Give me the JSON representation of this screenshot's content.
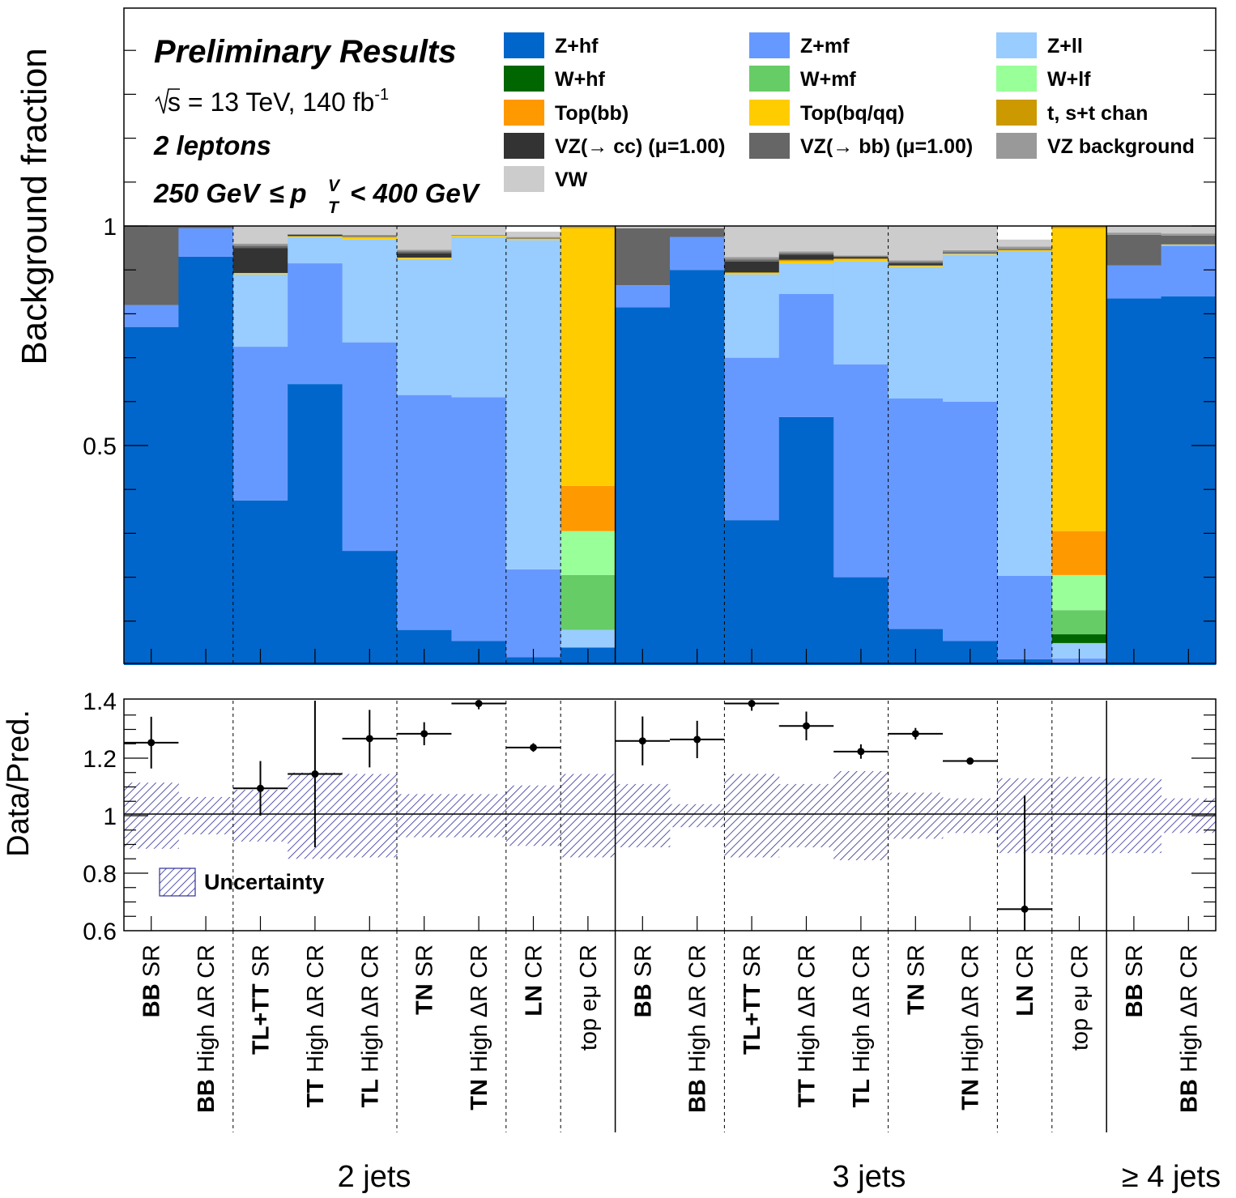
{
  "annotations": {
    "title": "Preliminary Results",
    "energy_pre": "s",
    "energy_rest": " = 13 TeV, 140 fb",
    "energy_sup": "-1",
    "channel": "2 leptons",
    "ptv_low": "250 GeV",
    "ptv_le": "≤",
    "ptv_p": "p",
    "ptv_sup": "V",
    "ptv_sub": "T",
    "ptv_high": "< 400 GeV"
  },
  "colors": {
    "Zhf": "#0066cc",
    "Zmf": "#6699ff",
    "Zll": "#99ccff",
    "Whf": "#006600",
    "Wmf": "#66cc66",
    "Wlf": "#99ff99",
    "Topbb": "#ff9900",
    "Topbq": "#ffcc00",
    "stop": "#cc9900",
    "VZcc": "#333333",
    "VZbb": "#666666",
    "VZbkg": "#999999",
    "VW": "#cccccc",
    "unc": "#2e2e99"
  },
  "chart_data": [
    {
      "type": "stacked-bar",
      "ylabel": "Background fraction",
      "ylim": [
        0,
        1.5
      ],
      "yticks": [
        0.5,
        1
      ],
      "ytick_labels": [
        "0.5",
        "1"
      ],
      "components": [
        {
          "key": "Zhf",
          "name": "Z+hf"
        },
        {
          "key": "Zmf",
          "name": "Z+mf"
        },
        {
          "key": "Zll",
          "name": "Z+ll"
        },
        {
          "key": "Whf",
          "name": "W+hf"
        },
        {
          "key": "Wmf",
          "name": "W+mf"
        },
        {
          "key": "Wlf",
          "name": "W+lf"
        },
        {
          "key": "Topbb",
          "name": "Top(bb)"
        },
        {
          "key": "Topbq",
          "name": "Top(bq/qq)"
        },
        {
          "key": "stop",
          "name": "t, s+t chan"
        },
        {
          "key": "VZcc",
          "name": "VZ(→ cc) (μ=1.00)"
        },
        {
          "key": "VZbb",
          "name": "VZ(→ bb) (μ=1.00)"
        },
        {
          "key": "VZbkg",
          "name": "VZ background"
        },
        {
          "key": "VW",
          "name": "VW"
        }
      ],
      "bins": [
        {
          "Zhf": 0.77,
          "Zmf": 0.05,
          "Zll": 0.0,
          "Whf": 0,
          "Wmf": 0,
          "Wlf": 0,
          "Topbb": 0,
          "Topbq": 0,
          "stop": 0,
          "VZcc": 0,
          "VZbb": 0.18,
          "VZbkg": 0,
          "VW": 0
        },
        {
          "Zhf": 0.93,
          "Zmf": 0.065,
          "Zll": 0.0,
          "Whf": 0,
          "Wmf": 0,
          "Wlf": 0,
          "Topbb": 0,
          "Topbq": 0,
          "stop": 0,
          "VZcc": 0,
          "VZbb": 0.005,
          "VZbkg": 0,
          "VW": 0
        },
        {
          "Zhf": 0.375,
          "Zmf": 0.35,
          "Zll": 0.165,
          "Whf": 0,
          "Wmf": 0,
          "Wlf": 0,
          "Topbb": 0,
          "Topbq": 0.003,
          "stop": 0,
          "VZcc": 0.057,
          "VZbb": 0.005,
          "VZbkg": 0.005,
          "VW": 0.04
        },
        {
          "Zhf": 0.64,
          "Zmf": 0.275,
          "Zll": 0.06,
          "Whf": 0,
          "Wmf": 0,
          "Wlf": 0,
          "Topbb": 0,
          "Topbq": 0.002,
          "stop": 0,
          "VZcc": 0.003,
          "VZbb": 0.001,
          "VZbkg": 0.001,
          "VW": 0.018
        },
        {
          "Zhf": 0.26,
          "Zmf": 0.475,
          "Zll": 0.235,
          "Whf": 0,
          "Wmf": 0,
          "Wlf": 0,
          "Topbb": 0,
          "Topbq": 0.005,
          "stop": 0,
          "VZcc": 0,
          "VZbb": 0.002,
          "VZbkg": 0.003,
          "VW": 0.02
        },
        {
          "Zhf": 0.08,
          "Zmf": 0.535,
          "Zll": 0.31,
          "Whf": 0,
          "Wmf": 0,
          "Wlf": 0,
          "Topbb": 0,
          "Topbq": 0.003,
          "stop": 0,
          "VZcc": 0.01,
          "VZbb": 0.004,
          "VZbkg": 0.004,
          "VW": 0.054
        },
        {
          "Zhf": 0.055,
          "Zmf": 0.555,
          "Zll": 0.365,
          "Whf": 0,
          "Wmf": 0,
          "Wlf": 0,
          "Topbb": 0,
          "Topbq": 0.003,
          "stop": 0,
          "VZcc": 0,
          "VZbb": 0.001,
          "VZbkg": 0.001,
          "VW": 0.02
        },
        {
          "Zhf": 0.018,
          "Zmf": 0.2,
          "Zll": 0.75,
          "Whf": 0,
          "Wmf": 0,
          "Wlf": 0,
          "Topbb": 0,
          "Topbq": 0.003,
          "stop": 0,
          "VZcc": 0,
          "VZbb": 0.002,
          "VZbkg": 0.002,
          "VW": 0.012
        },
        {
          "Zhf": 0.04,
          "Zmf": 0.0,
          "Zll": 0.04,
          "Whf": 0,
          "Wmf": 0.125,
          "Wlf": 0.1,
          "Topbb": 0.103,
          "Topbq": 0.587,
          "stop": 0.003,
          "VZcc": 0,
          "VZbb": 0,
          "VZbkg": 0,
          "VW": 0.002
        },
        {
          "Zhf": 0.815,
          "Zmf": 0.05,
          "Zll": 0,
          "Whf": 0,
          "Wmf": 0,
          "Wlf": 0,
          "Topbb": 0,
          "Topbq": 0,
          "stop": 0,
          "VZcc": 0,
          "VZbb": 0.13,
          "VZbkg": 0,
          "VW": 0.005
        },
        {
          "Zhf": 0.9,
          "Zmf": 0.075,
          "Zll": 0,
          "Whf": 0,
          "Wmf": 0,
          "Wlf": 0,
          "Topbb": 0,
          "Topbq": 0,
          "stop": 0,
          "VZcc": 0,
          "VZbb": 0.02,
          "VZbkg": 0,
          "VW": 0.005
        },
        {
          "Zhf": 0.33,
          "Zmf": 0.37,
          "Zll": 0.19,
          "Whf": 0,
          "Wmf": 0,
          "Wlf": 0,
          "Topbb": 0,
          "Topbq": 0.004,
          "stop": 0,
          "VZcc": 0.025,
          "VZbb": 0.005,
          "VZbkg": 0.005,
          "VW": 0.071
        },
        {
          "Zhf": 0.565,
          "Zmf": 0.28,
          "Zll": 0.07,
          "Whf": 0,
          "Wmf": 0,
          "Wlf": 0,
          "Topbb": 0,
          "Topbq": 0.005,
          "stop": 0.003,
          "VZcc": 0.012,
          "VZbb": 0.003,
          "VZbkg": 0.004,
          "VW": 0.058
        },
        {
          "Zhf": 0.2,
          "Zmf": 0.485,
          "Zll": 0.235,
          "Whf": 0,
          "Wmf": 0,
          "Wlf": 0,
          "Topbb": 0,
          "Topbq": 0.004,
          "stop": 0.002,
          "VZcc": 0.003,
          "VZbb": 0.002,
          "VZbkg": 0.002,
          "VW": 0.067
        },
        {
          "Zhf": 0.082,
          "Zmf": 0.525,
          "Zll": 0.3,
          "Whf": 0,
          "Wmf": 0,
          "Wlf": 0,
          "Topbb": 0,
          "Topbq": 0.003,
          "stop": 0,
          "VZcc": 0.005,
          "VZbb": 0.003,
          "VZbkg": 0.004,
          "VW": 0.078
        },
        {
          "Zhf": 0.055,
          "Zmf": 0.545,
          "Zll": 0.335,
          "Whf": 0,
          "Wmf": 0,
          "Wlf": 0,
          "Topbb": 0,
          "Topbq": 0.002,
          "stop": 0,
          "VZcc": 0,
          "VZbb": 0.003,
          "VZbkg": 0.005,
          "VW": 0.055
        },
        {
          "Zhf": 0.013,
          "Zmf": 0.19,
          "Zll": 0.74,
          "Whf": 0,
          "Wmf": 0,
          "Wlf": 0,
          "Topbb": 0,
          "Topbq": 0.002,
          "stop": 0,
          "VZcc": 0,
          "VZbb": 0.003,
          "VZbkg": 0.005,
          "VW": 0.016
        },
        {
          "Zhf": 0.005,
          "Zmf": 0.01,
          "Zll": 0.035,
          "Whf": 0.02,
          "Wmf": 0.055,
          "Wlf": 0.08,
          "Topbb": 0.1,
          "Topbq": 0.69,
          "stop": 0.005,
          "VZcc": 0,
          "VZbb": 0,
          "VZbkg": 0,
          "VW": 0
        },
        {
          "Zhf": 0.835,
          "Zmf": 0.075,
          "Zll": 0.0,
          "Whf": 0,
          "Wmf": 0,
          "Wlf": 0,
          "Topbb": 0,
          "Topbq": 0,
          "stop": 0,
          "VZcc": 0,
          "VZbb": 0.07,
          "VZbkg": 0.005,
          "VW": 0.015
        },
        {
          "Zhf": 0.84,
          "Zmf": 0.115,
          "Zll": 0.002,
          "Whf": 0,
          "Wmf": 0,
          "Wlf": 0,
          "Topbb": 0,
          "Topbq": 0.001,
          "stop": 0,
          "VZcc": 0,
          "VZbb": 0.02,
          "VZbkg": 0.005,
          "VW": 0.017
        }
      ]
    },
    {
      "type": "ratio",
      "ylabel": "Data/Pred.",
      "ylim": [
        0.6,
        1.4
      ],
      "yticks": [
        0.6,
        0.8,
        1,
        1.2,
        1.4
      ],
      "ytick_labels": [
        "0.6",
        "0.8",
        "1",
        "1.2",
        "1.4"
      ],
      "legend": "Uncertainty",
      "points": [
        {
          "y": 1.254,
          "err": 0.09
        },
        {
          "y": null,
          "err": 0
        },
        {
          "y": 1.095,
          "err": 0.095
        },
        {
          "y": 1.145,
          "err": 0.255
        },
        {
          "y": 1.268,
          "err": 0.1
        },
        {
          "y": 1.285,
          "err": 0.04
        },
        {
          "y": 1.39,
          "err": 0.02
        },
        {
          "y": 1.237,
          "err": 0.015
        },
        {
          "y": null,
          "err": 0
        },
        {
          "y": 1.26,
          "err": 0.085
        },
        {
          "y": 1.265,
          "err": 0.065
        },
        {
          "y": 1.39,
          "err": 0.025
        },
        {
          "y": 1.312,
          "err": 0.05
        },
        {
          "y": 1.223,
          "err": 0.025
        },
        {
          "y": 1.285,
          "err": 0.02
        },
        {
          "y": 1.19,
          "err": 0.008
        },
        {
          "y": 0.675,
          "err": 0.395
        },
        {
          "y": null,
          "err": 0
        },
        {
          "y": null,
          "err": 0
        },
        {
          "y": null,
          "err": 0
        }
      ],
      "uncertainty": [
        0.115,
        0.065,
        0.09,
        0.15,
        0.145,
        0.075,
        0.075,
        0.105,
        0.145,
        0.11,
        0.04,
        0.145,
        0.11,
        0.155,
        0.08,
        0.06,
        0.13,
        0.135,
        0.13,
        0.06
      ]
    }
  ],
  "bin_labels": [
    {
      "b": "BB",
      "r": " SR"
    },
    {
      "b": "BB",
      "r": " High ΔR CR"
    },
    {
      "b": "TL+TT",
      "r": " SR"
    },
    {
      "b": "TT",
      "r": " High ΔR CR"
    },
    {
      "b": "TL",
      "r": " High ΔR CR"
    },
    {
      "b": "TN",
      "r": " SR"
    },
    {
      "b": "TN",
      "r": " High ΔR CR"
    },
    {
      "b": "LN",
      "r": " CR"
    },
    {
      "b": "",
      "r": "top eμ CR"
    },
    {
      "b": "BB",
      "r": " SR"
    },
    {
      "b": "BB",
      "r": " High ΔR CR"
    },
    {
      "b": "TL+TT",
      "r": " SR"
    },
    {
      "b": "TT",
      "r": " High ΔR CR"
    },
    {
      "b": "TL",
      "r": " High ΔR CR"
    },
    {
      "b": "TN",
      "r": " SR"
    },
    {
      "b": "TN",
      "r": " High ΔR CR"
    },
    {
      "b": "LN",
      "r": " CR"
    },
    {
      "b": "",
      "r": "top eμ CR"
    },
    {
      "b": "BB",
      "r": " SR"
    },
    {
      "b": "BB",
      "r": " High ΔR CR"
    }
  ],
  "groups": [
    "2 jets",
    "3 jets",
    "≥ 4 jets"
  ]
}
